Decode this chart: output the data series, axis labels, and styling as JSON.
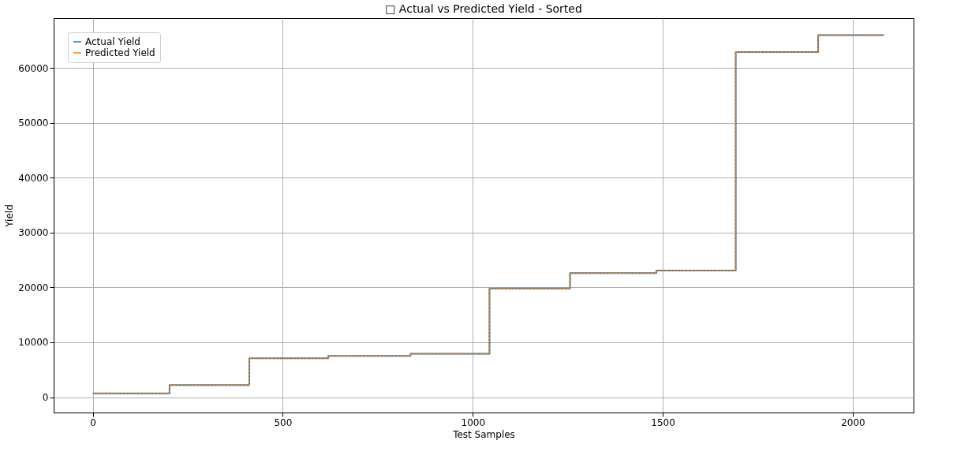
{
  "chart_data": {
    "type": "step",
    "title": "□ Actual vs Predicted Yield - Sorted",
    "xlabel": "Test Samples",
    "ylabel": "Yield",
    "x": [
      0,
      202,
      412,
      620,
      836,
      1044,
      1256,
      1483,
      1692,
      1909,
      2082
    ],
    "series": [
      {
        "name": "Actual Yield",
        "color": "#1f77b4",
        "line_style": "solid",
        "values": [
          700,
          2200,
          7100,
          7500,
          7900,
          19800,
          22600,
          23100,
          62900,
          66000,
          66000
        ]
      },
      {
        "name": "Predicted Yield",
        "color": "#ff7f0e",
        "line_style": "dashed",
        "values": [
          700,
          2200,
          7100,
          7500,
          7900,
          19800,
          22600,
          23100,
          62900,
          66000,
          66000
        ]
      }
    ],
    "xlim": [
      -103,
      2160
    ],
    "xticks": [
      0,
      500,
      1000,
      1500,
      2000
    ],
    "ylim": [
      -2800,
      69100
    ],
    "yticks": [
      0,
      10000,
      20000,
      30000,
      40000,
      50000,
      60000
    ],
    "grid": true,
    "legend": "top left",
    "marker": "none"
  }
}
